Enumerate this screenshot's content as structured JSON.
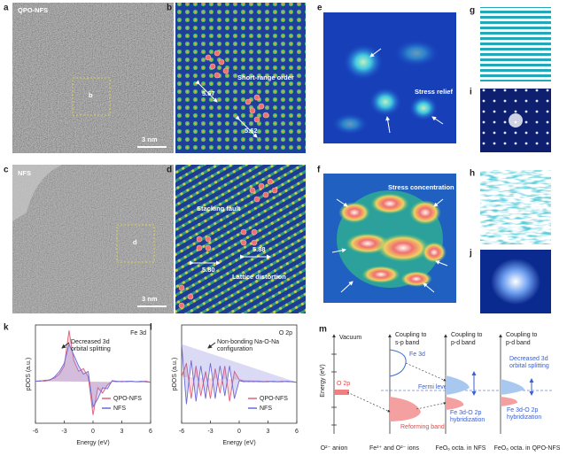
{
  "panels": {
    "a": {
      "label": "a",
      "tag": "QPO-NFS",
      "inset": "b",
      "scale": "3 nm"
    },
    "b": {
      "label": "b",
      "title": "Short-range order",
      "d1": "5.67",
      "d2": "5.62"
    },
    "c": {
      "label": "c",
      "tag": "NFS",
      "inset": "d",
      "scale": "3 nm"
    },
    "d": {
      "label": "d",
      "fault": "Stacking fault",
      "distortion": "Lattice distortion",
      "d1": "5.80",
      "d2": "5.88"
    },
    "e": {
      "label": "e",
      "title": "Stress relief"
    },
    "f": {
      "label": "f",
      "title": "Stress concentration"
    },
    "g": {
      "label": "g"
    },
    "h": {
      "label": "h"
    },
    "i": {
      "label": "i"
    },
    "j": {
      "label": "j"
    }
  },
  "charts": [
    {
      "type": "line",
      "label": "k",
      "title": "Fe 3d",
      "annotation": [
        "Decreased 3d",
        "orbital splitting"
      ],
      "ylabel": "pDOS (a.u.)",
      "xlabel": "Energy (eV)",
      "xlim": [
        -6,
        6
      ],
      "ylim": [
        -0.75,
        1.05
      ],
      "xticks": [
        -6,
        -3,
        0,
        3,
        6
      ],
      "x": [
        -6,
        -5.5,
        -5,
        -4.5,
        -4,
        -3.5,
        -3,
        -2.5,
        -2,
        -1.5,
        -1,
        -0.5,
        0,
        0.5,
        1,
        1.5,
        2,
        2.5,
        3,
        3.5,
        4,
        4.5,
        5,
        5.5,
        6
      ],
      "series": [
        {
          "name": "QPO-NFS",
          "color": "#e0607a",
          "values": [
            0.02,
            0.03,
            0.02,
            0.05,
            0.08,
            0.15,
            0.3,
            0.95,
            0.4,
            0.2,
            0.25,
            0.1,
            -0.6,
            -0.1,
            -0.2,
            -0.05,
            0.02,
            0.01,
            0.02,
            0.01,
            0.02,
            0.01,
            0.01,
            0.02,
            0
          ]
        },
        {
          "name": "NFS",
          "color": "#6a6ad8",
          "values": [
            0.02,
            0.02,
            0.04,
            0.04,
            0.1,
            0.2,
            0.35,
            0.7,
            0.5,
            0.3,
            0.15,
            0.2,
            -0.45,
            -0.3,
            -0.1,
            -0.12,
            0.03,
            0.02,
            0.01,
            0.02,
            0.02,
            0.01,
            0.02,
            0.01,
            0
          ]
        }
      ]
    },
    {
      "type": "line",
      "label": "l",
      "title": "O 2p",
      "annotation": [
        "Non-bonding Na-O-Na",
        "configuration"
      ],
      "ylabel": "pDOS (a.u.)",
      "xlabel": "Energy (eV)",
      "xlim": [
        -6,
        6
      ],
      "ylim": [
        -0.75,
        1.05
      ],
      "xticks": [
        -6,
        -3,
        0,
        3,
        6
      ],
      "x": [
        -6,
        -5.5,
        -5,
        -4.5,
        -4,
        -3.5,
        -3,
        -2.5,
        -2,
        -1.5,
        -1,
        -0.5,
        0,
        0.5,
        1,
        1.5,
        2,
        2.5,
        3,
        3.5,
        4,
        4.5,
        5,
        5.5,
        6
      ],
      "series": [
        {
          "name": "QPO-NFS",
          "color": "#e0607a",
          "values": [
            0.1,
            0.35,
            -0.3,
            0.3,
            -0.25,
            0.2,
            -0.3,
            0.25,
            -0.2,
            0.3,
            -0.35,
            0.2,
            0.05,
            0.02,
            0.01,
            0.02,
            0.01,
            0.01,
            0.02,
            0.01,
            0.01,
            0.02,
            0.01,
            0.01,
            0
          ]
        },
        {
          "name": "NFS",
          "color": "#6a6ad8",
          "values": [
            0.7,
            -0.4,
            0.4,
            -0.35,
            0.3,
            -0.3,
            0.35,
            -0.3,
            0.3,
            -0.25,
            0.3,
            -0.3,
            0.03,
            0.01,
            0.02,
            0.01,
            0.02,
            0.01,
            0.01,
            0.02,
            0.01,
            0.01,
            0.02,
            0.01,
            0
          ]
        }
      ]
    }
  ],
  "diagram": {
    "label": "m",
    "vacuum": "Vacuum",
    "energy": "Energy (eV)",
    "col2_top": [
      "Coupling to",
      "s-p band"
    ],
    "col3_top": [
      "Coupling to",
      "p-d band"
    ],
    "col4_top": [
      "Coupling to",
      "p-d band"
    ],
    "o2p": "O 2p",
    "fe3d": "Fe 3d",
    "fermi": "Fermi level",
    "reforming": "Reforming band",
    "hyb3": [
      "Fe 3d-O 2p",
      "hybridization"
    ],
    "hyb4": [
      "Fe 3d-O 2p",
      "hybridization"
    ],
    "split": [
      "Decreased 3d",
      "orbital splitting"
    ],
    "bottom": [
      "O²⁻ anion",
      "Fe³⁺ and O²⁻ ions",
      "FeO₆ octa. in NFS",
      "FeO₆ octa. in QPO-NFS"
    ]
  }
}
